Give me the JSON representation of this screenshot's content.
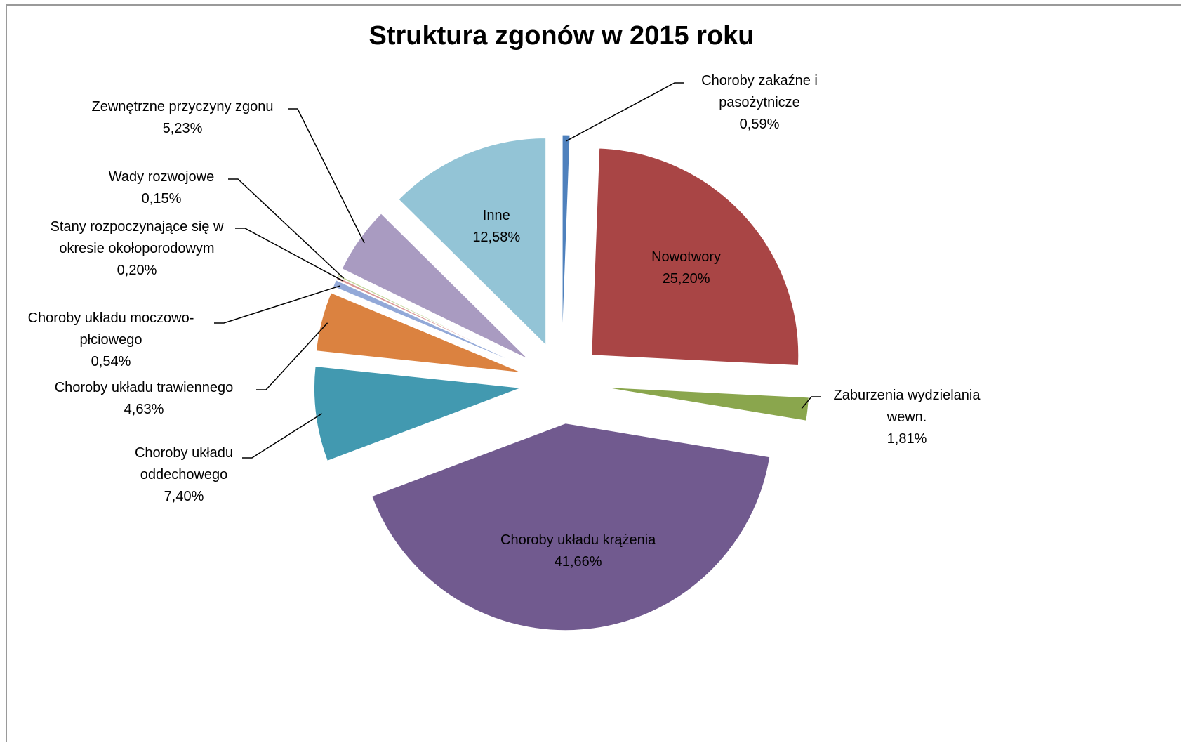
{
  "chart_data": {
    "type": "pie",
    "title": "Struktura zgonów w 2015 roku",
    "categories": [
      "Choroby zakaźne i pasożytnicze",
      "Nowotwory",
      "Zaburzenia wydzielania wewn.",
      "Choroby układu krążenia",
      "Choroby układu oddechowego",
      "Choroby układu trawiennego",
      "Choroby układu moczowo-płciowego",
      "Stany rozpoczynające się w okresie okołoporodowym",
      "Wady rozwojowe",
      "Zewnętrzne przyczyny zgonu",
      "Inne"
    ],
    "values": [
      0.59,
      25.2,
      1.81,
      41.66,
      7.4,
      4.63,
      0.54,
      0.2,
      0.15,
      5.23,
      12.58
    ],
    "value_labels": [
      "0,59%",
      "25,20%",
      "1,81%",
      "41,66%",
      "7,40%",
      "4,63%",
      "0,54%",
      "0,20%",
      "0,15%",
      "5,23%",
      "12,58%"
    ],
    "colors": [
      "#4f81bd",
      "#a94545",
      "#8aa64d",
      "#715a8f",
      "#4299b0",
      "#db8240",
      "#93a9d8",
      "#d99694",
      "#c3d69b",
      "#a99bc1",
      "#93c4d6"
    ]
  }
}
